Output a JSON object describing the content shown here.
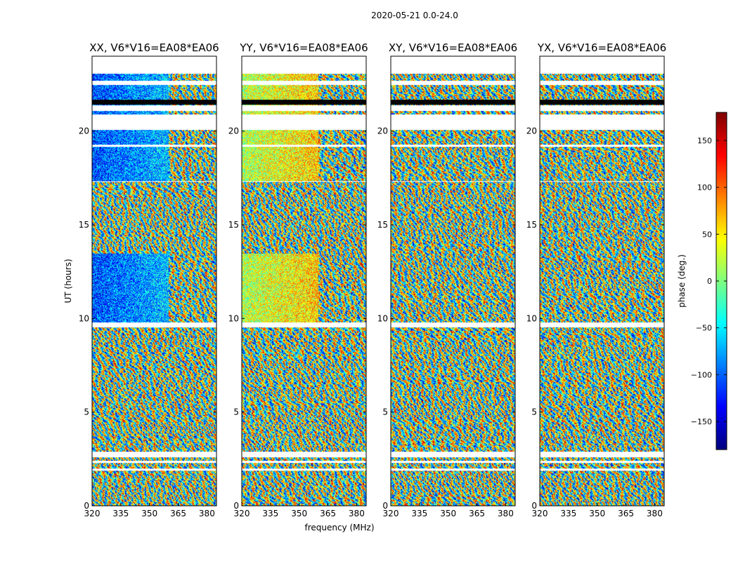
{
  "chart_data": {
    "type": "heatmap",
    "suptitle": "2020-05-21 0.0-24.0",
    "xlabel": "frequency (MHz)",
    "ylabel": "UT (hours)",
    "xlim": [
      320,
      385
    ],
    "ylim": [
      0,
      24
    ],
    "x_ticks": [
      320,
      335,
      350,
      365,
      380
    ],
    "y_ticks": [
      0,
      5,
      10,
      15,
      20
    ],
    "panels": [
      {
        "title": "XX, V6*V16=EA08*EA06",
        "pol": "XX"
      },
      {
        "title": "YY, V6*V16=EA08*EA06",
        "pol": "YY"
      },
      {
        "title": "XY, V6*V16=EA08*EA06",
        "pol": "XY"
      },
      {
        "title": "YX, V6*V16=EA08*EA06",
        "pol": "YX"
      }
    ],
    "colorbar": {
      "label": "phase (deg.)",
      "range": [
        -180,
        180
      ],
      "ticks": [
        -150,
        -100,
        -50,
        0,
        50,
        100,
        150
      ],
      "colormap": "jet"
    },
    "flagged_ut_ranges": [
      [
        23.1,
        24.0
      ],
      [
        22.5,
        22.7
      ],
      [
        21.1,
        21.4
      ],
      [
        20.1,
        20.9
      ],
      [
        19.2,
        19.3
      ],
      [
        17.3,
        17.35
      ],
      [
        9.55,
        9.8
      ],
      [
        2.6,
        2.9
      ],
      [
        2.3,
        2.4
      ],
      [
        1.9,
        2.0
      ]
    ],
    "black_ut_ranges": [
      [
        21.45,
        21.7
      ]
    ]
  }
}
